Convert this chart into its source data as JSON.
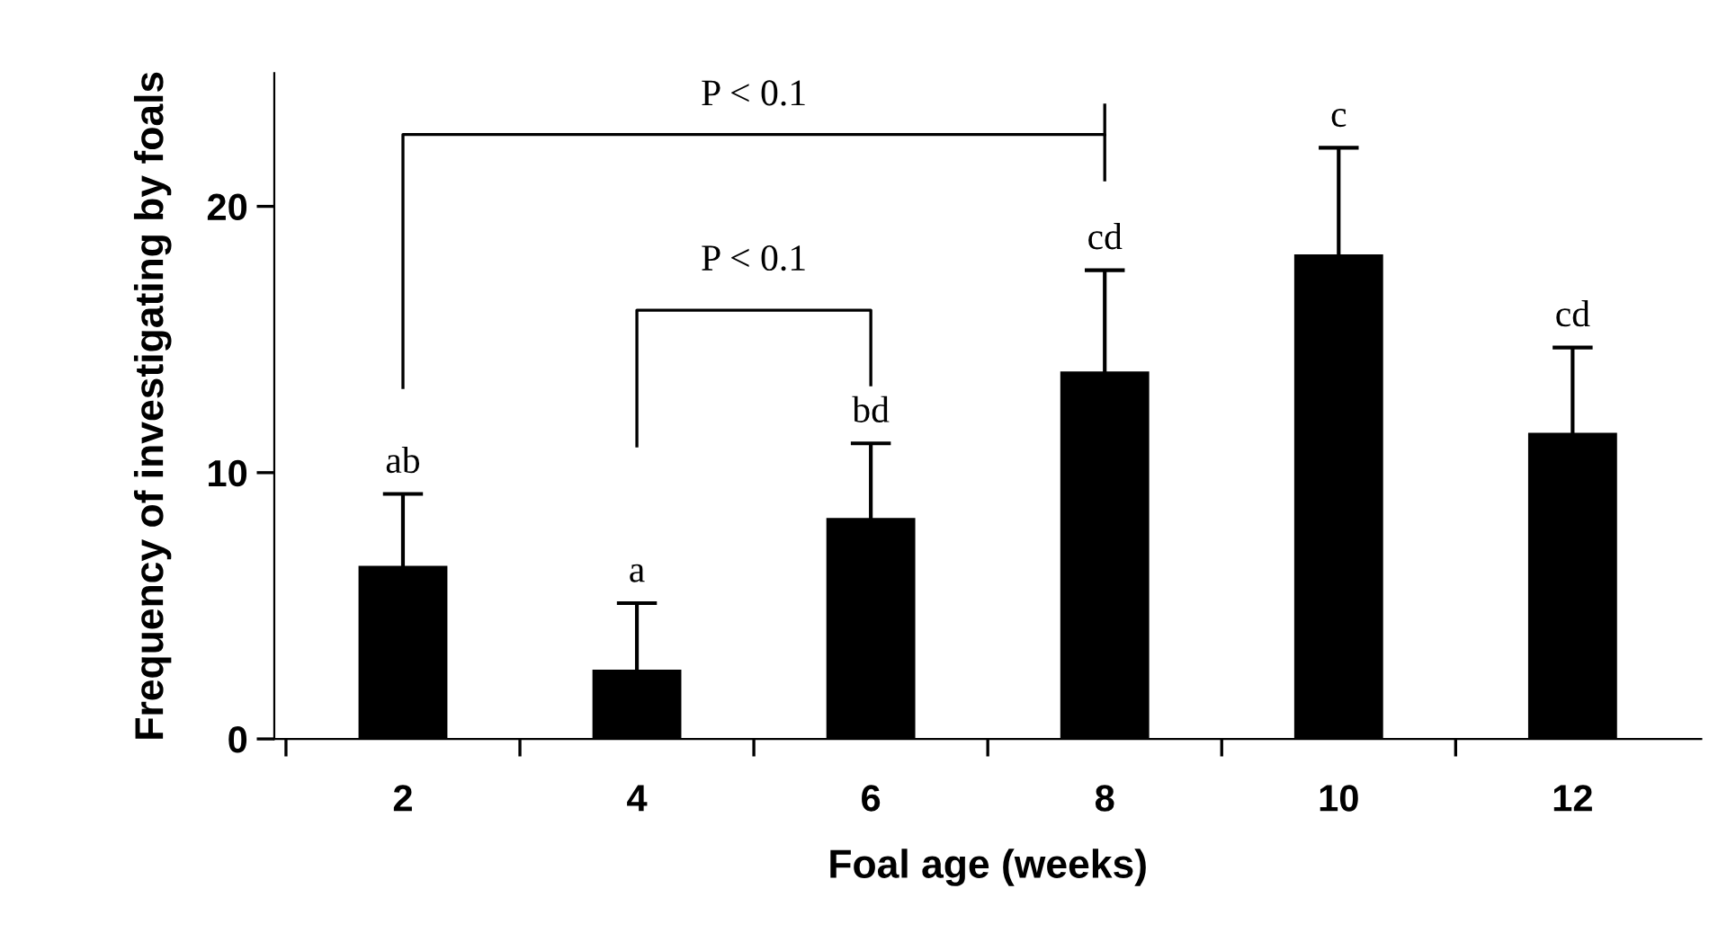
{
  "chart_data": {
    "type": "bar",
    "xlabel": "Foal age (weeks)",
    "ylabel": "Frequency of investigating by foals",
    "categories": [
      "2",
      "4",
      "6",
      "8",
      "10",
      "12"
    ],
    "values": [
      6.5,
      2.6,
      8.3,
      13.8,
      18.2,
      11.5
    ],
    "errors": [
      2.7,
      2.5,
      2.8,
      3.8,
      4.0,
      3.2
    ],
    "color": "#000000",
    "ylim": [
      0,
      25
    ],
    "yticks": [
      0,
      10,
      20
    ],
    "grid": false,
    "legend": false,
    "annotations": [
      {
        "text": "ab",
        "x": "2",
        "y": 9.2
      },
      {
        "text": "a",
        "x": "4",
        "y": 5.1
      },
      {
        "text": "bd",
        "x": "6",
        "y": 11.1
      },
      {
        "text": "cd",
        "x": "8",
        "y": 17.6
      },
      {
        "text": "c",
        "x": "10",
        "y": 22.2
      },
      {
        "text": "cd",
        "x": "12",
        "y": 14.7
      },
      "P < 0.1",
      "P < 0.1"
    ]
  }
}
